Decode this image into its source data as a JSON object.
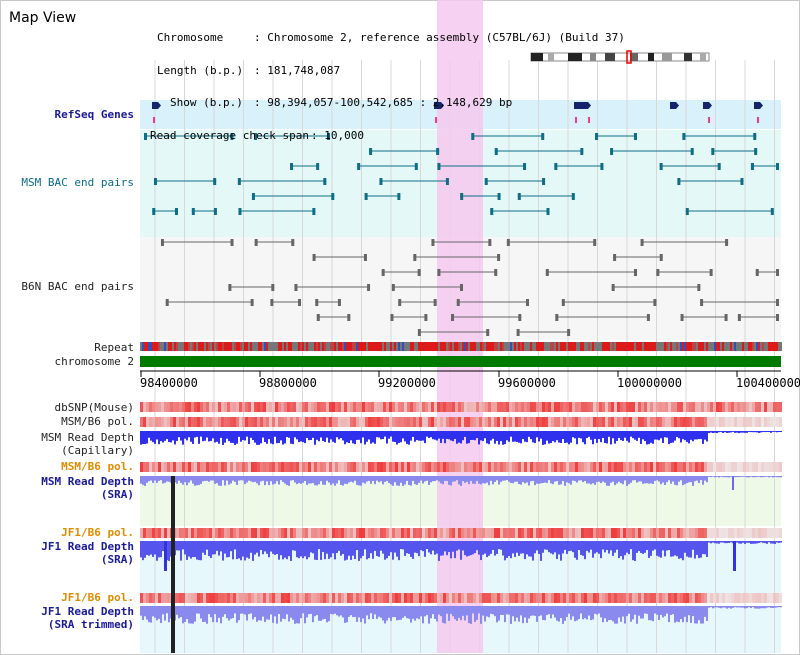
{
  "panel_title": "Map View",
  "info": {
    "chromosome_label": "Chromosome",
    "chromosome_value": ": Chromosome 2, reference assembly (C57BL/6J) (Build 37)",
    "length_label": "Length (b.p.)",
    "length_value": ": 181,748,087",
    "show_label": "Show (b.p.)",
    "show_value": ": 98,394,057-100,542,685 : 2,148,629 bp",
    "span_label": "Read coverage check span",
    "span_value": ": 10,000"
  },
  "tracks": {
    "refseq": "RefSeq Genes",
    "msm_bac": "MSM BAC end pairs",
    "b6n_bac": "B6N BAC end pairs",
    "repeat": "Repeat",
    "chromosome": "chromosome 2",
    "dbsnp": "dbSNP(Mouse)",
    "msm_b6_pol_1": "MSM/B6 pol.",
    "msm_depth_cap_1": "MSM Read Depth",
    "msm_depth_cap_2": "(Capillary)",
    "msm_b6_pol_2": "MSM/B6 pol.",
    "msm_depth_sra_1": "MSM Read Depth",
    "msm_depth_sra_2": "(SRA)",
    "jf1_b6_pol_1": "JF1/B6 pol.",
    "jf1_depth_sra_1": "JF1 Read Depth",
    "jf1_depth_sra_2": "(SRA)",
    "jf1_b6_pol_2": "JF1/B6 pol.",
    "jf1_depth_trim_1": "JF1 Read Depth",
    "jf1_depth_trim_2": "(SRA trimmed)"
  },
  "axis_ticks": [
    "98400000",
    "98800000",
    "99200000",
    "99600000",
    "100000000",
    "100400000"
  ],
  "colors": {
    "highlight": "#f6c9ee",
    "refseq_bg": "#d8f1fb",
    "bac_bg": "#e4f8f8",
    "chromosome_bar": "#007a00",
    "pol_red": "#ee2b2b",
    "depth_blue": "#2f2fee",
    "depth_light": "#8a8aee",
    "label_navy": "#1a1a99",
    "label_orange": "#e08c00"
  }
}
